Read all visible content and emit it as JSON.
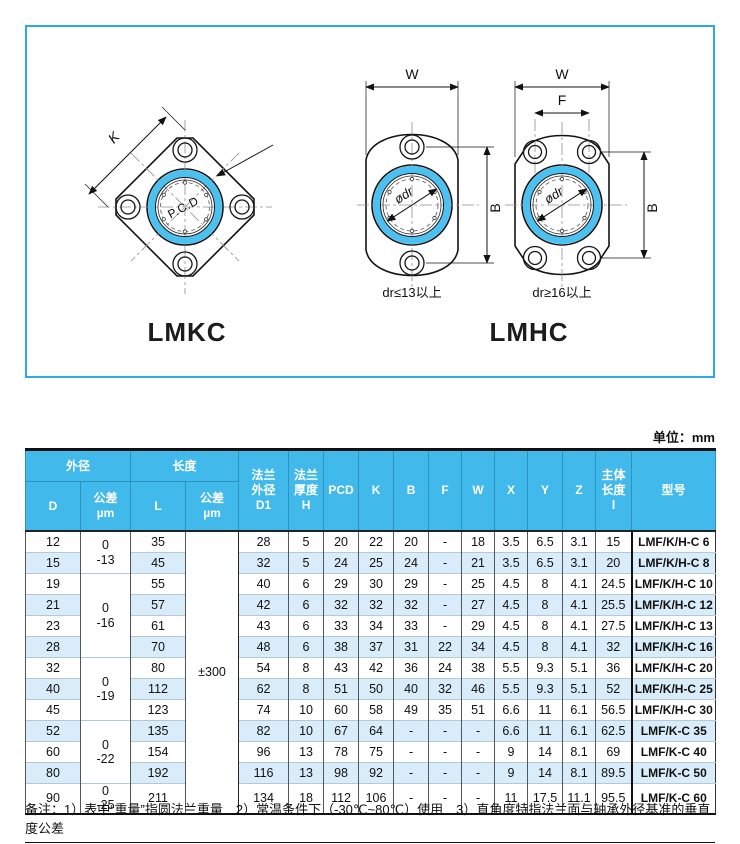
{
  "unit_label": "单位：mm",
  "diagrams": {
    "lmkc": {
      "label": "LMKC",
      "k_dim": "K",
      "center_label": "P.C.D"
    },
    "lmhc_label": "LMHC",
    "lmhc_left": {
      "w_dim": "W",
      "b_dim": "B",
      "bore": "ødr",
      "caption": "dr≤13以上"
    },
    "lmhc_right": {
      "w_dim": "W",
      "f_dim": "F",
      "b_dim": "B",
      "bore": "ødr",
      "caption": "dr≥16以上"
    },
    "accent_blue": "#4ac1f1",
    "frame_border": "#2aabe2"
  },
  "table": {
    "header": {
      "group_od": "外径",
      "group_len": "长度",
      "d": "D",
      "tol_d": "公差\nµm",
      "l": "L",
      "tol_l": "公差\nµm",
      "d1": "法兰\n外径\nD1",
      "h": "法兰\n厚度\nH",
      "pcd": "PCD",
      "k": "K",
      "b": "B",
      "f": "F",
      "w": "W",
      "x": "X",
      "y": "Y",
      "z": "Z",
      "len": "主体\n长度\nl",
      "model": "型号"
    },
    "d_tol_groups": [
      {
        "text": "0\n-13",
        "span": 2
      },
      {
        "text": "0\n-16",
        "span": 4
      },
      {
        "text": "0\n-19",
        "span": 3
      },
      {
        "text": "0\n-22",
        "span": 3
      },
      {
        "text": "0\n-25",
        "span": 1
      }
    ],
    "l_tol": {
      "text": "±300",
      "span": 13
    },
    "rows": [
      [
        "12",
        "35",
        "28",
        "5",
        "20",
        "22",
        "20",
        "-",
        "18",
        "3.5",
        "6.5",
        "3.1",
        "15",
        "LMF/K/H-C 6"
      ],
      [
        "15",
        "45",
        "32",
        "5",
        "24",
        "25",
        "24",
        "-",
        "21",
        "3.5",
        "6.5",
        "3.1",
        "20",
        "LMF/K/H-C 8"
      ],
      [
        "19",
        "55",
        "40",
        "6",
        "29",
        "30",
        "29",
        "-",
        "25",
        "4.5",
        "8",
        "4.1",
        "24.5",
        "LMF/K/H-C 10"
      ],
      [
        "21",
        "57",
        "42",
        "6",
        "32",
        "32",
        "32",
        "-",
        "27",
        "4.5",
        "8",
        "4.1",
        "25.5",
        "LMF/K/H-C 12"
      ],
      [
        "23",
        "61",
        "43",
        "6",
        "33",
        "34",
        "33",
        "-",
        "29",
        "4.5",
        "8",
        "4.1",
        "27.5",
        "LMF/K/H-C 13"
      ],
      [
        "28",
        "70",
        "48",
        "6",
        "38",
        "37",
        "31",
        "22",
        "34",
        "4.5",
        "8",
        "4.1",
        "32",
        "LMF/K/H-C 16"
      ],
      [
        "32",
        "80",
        "54",
        "8",
        "43",
        "42",
        "36",
        "24",
        "38",
        "5.5",
        "9.3",
        "5.1",
        "36",
        "LMF/K/H-C 20"
      ],
      [
        "40",
        "112",
        "62",
        "8",
        "51",
        "50",
        "40",
        "32",
        "46",
        "5.5",
        "9.3",
        "5.1",
        "52",
        "LMF/K/H-C 25"
      ],
      [
        "45",
        "123",
        "74",
        "10",
        "60",
        "58",
        "49",
        "35",
        "51",
        "6.6",
        "11",
        "6.1",
        "56.5",
        "LMF/K/H-C 30"
      ],
      [
        "52",
        "135",
        "82",
        "10",
        "67",
        "64",
        "-",
        "-",
        "-",
        "6.6",
        "11",
        "6.1",
        "62.5",
        "LMF/K-C 35"
      ],
      [
        "60",
        "154",
        "96",
        "13",
        "78",
        "75",
        "-",
        "-",
        "-",
        "9",
        "14",
        "8.1",
        "69",
        "LMF/K-C 40"
      ],
      [
        "80",
        "192",
        "116",
        "13",
        "98",
        "92",
        "-",
        "-",
        "-",
        "9",
        "14",
        "8.1",
        "89.5",
        "LMF/K-C 50"
      ],
      [
        "90",
        "211",
        "134",
        "18",
        "112",
        "106",
        "-",
        "-",
        "-",
        "11",
        "17.5",
        "11.1",
        "95.5",
        "LMF/K-C 60"
      ]
    ]
  },
  "note": "备注：1）表中“重量”指圆法兰重量　2）常温条件下（-30℃~80℃）使用　3）直角度特指法兰面与轴承外径基准的垂直度公差"
}
